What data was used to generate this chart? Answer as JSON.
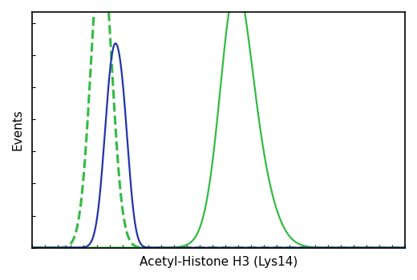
{
  "title": "",
  "xlabel": "Acetyl-Histone H3 (Lys14)",
  "ylabel": "Events",
  "background_color": "#ffffff",
  "border_color": "#000000",
  "curves": [
    {
      "label": "green_dashed",
      "color": "#33bb44",
      "linestyle": "dashed",
      "linewidth": 2.2,
      "components": [
        {
          "mu": 0.185,
          "sigma": 0.028,
          "peak": 1.35
        }
      ],
      "draw_order": 2
    },
    {
      "label": "blue_solid",
      "color": "#2233aa",
      "linestyle": "solid",
      "linewidth": 1.6,
      "components": [
        {
          "mu": 0.215,
          "sigma": 0.022,
          "peak": 0.78
        },
        {
          "mu": 0.245,
          "sigma": 0.018,
          "peak": 0.38
        }
      ],
      "draw_order": 3
    },
    {
      "label": "green_solid",
      "color": "#33bb44",
      "linestyle": "solid",
      "linewidth": 1.6,
      "components": [
        {
          "mu": 0.54,
          "sigma": 0.038,
          "peak": 0.68
        },
        {
          "mu": 0.57,
          "sigma": 0.055,
          "peak": 0.55
        }
      ],
      "draw_order": 1
    }
  ],
  "xlim": [
    0.0,
    1.0
  ],
  "ylim": [
    0.0,
    1.05
  ],
  "figsize": [
    5.2,
    3.5
  ],
  "dpi": 100,
  "xlabel_fontsize": 11,
  "ylabel_fontsize": 11,
  "n_xticks": 30,
  "n_yticks": 8
}
